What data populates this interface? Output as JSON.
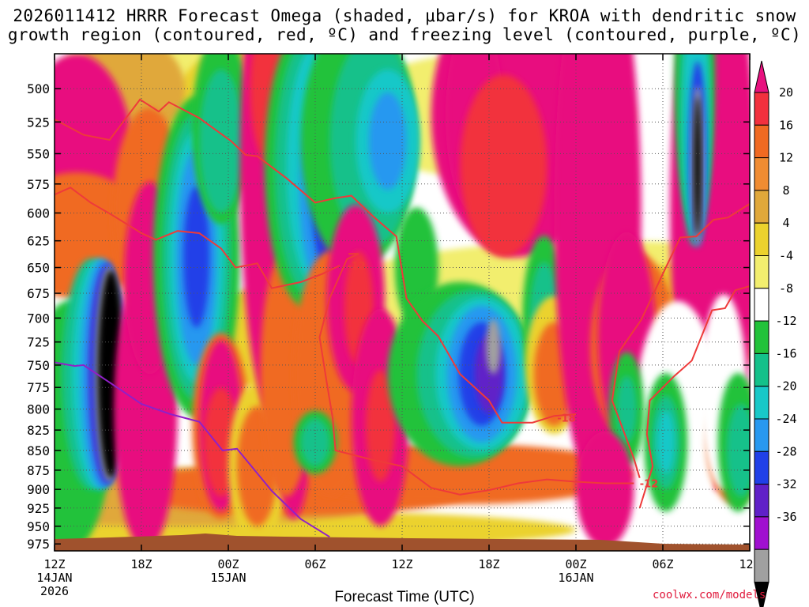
{
  "title_line1": "2026011412 HRRR Forecast Omega (shaded, μbar/s) for KROA with dendritic snow",
  "title_line2": "growth region (contoured, red, ºC) and freezing level (contoured, purple, ºC)",
  "chart_data": {
    "type": "heatmap",
    "title": "2026011412 HRRR Forecast Omega (shaded, μbar/s) for KROA with dendritic snow growth region (contoured, red, ºC) and freezing level (contoured, purple, ºC)",
    "xlabel": "Forecast Time (UTC)",
    "ylabel": "",
    "x_ticks": [
      {
        "hour": 0,
        "labels": [
          "12Z",
          "14JAN",
          "2026"
        ]
      },
      {
        "hour": 6,
        "labels": [
          "18Z"
        ]
      },
      {
        "hour": 12,
        "labels": [
          "00Z",
          "15JAN"
        ]
      },
      {
        "hour": 18,
        "labels": [
          "06Z"
        ]
      },
      {
        "hour": 24,
        "labels": [
          "12Z"
        ]
      },
      {
        "hour": 30,
        "labels": [
          "18Z"
        ]
      },
      {
        "hour": 36,
        "labels": [
          "00Z",
          "16JAN"
        ]
      },
      {
        "hour": 42,
        "labels": [
          "06Z"
        ]
      },
      {
        "hour": 48,
        "labels": [
          "12Z"
        ]
      }
    ],
    "x_range_hours": [
      0,
      48
    ],
    "y_ticks": [
      500,
      525,
      550,
      575,
      600,
      625,
      650,
      675,
      700,
      725,
      750,
      775,
      800,
      825,
      850,
      875,
      900,
      925,
      950,
      975
    ],
    "y_range_hPa": [
      475,
      985
    ],
    "y_scale": "log-pressure",
    "grid": true,
    "colorbar": {
      "labels": [
        "20",
        "16",
        "12",
        "8",
        "4",
        "-4",
        "-8",
        "-12",
        "-16",
        "-20",
        "-24",
        "-28",
        "-32",
        "-36"
      ],
      "colors": [
        "#e8117f",
        "#f2303e",
        "#f06a22",
        "#f08c32",
        "#e0a83a",
        "#ebd22d",
        "#f2ee6e",
        "#ffffff",
        "#22c23a",
        "#14c18a",
        "#18c8c8",
        "#2898f0",
        "#2040e8",
        "#6020c8",
        "#a010d0",
        "#a0a0a0",
        "#000000"
      ]
    },
    "contours": [
      {
        "name": "dendritic snow growth region (red)",
        "color": "#ee3a3a",
        "level": -18,
        "points": [
          [
            0,
            523
          ],
          [
            2,
            535
          ],
          [
            3.8,
            539
          ],
          [
            5.9,
            508
          ],
          [
            7.2,
            517
          ],
          [
            7.9,
            510
          ],
          [
            10,
            522
          ],
          [
            12.2,
            540
          ],
          [
            13.2,
            551
          ],
          [
            14,
            552
          ],
          [
            16,
            570
          ],
          [
            18,
            591
          ],
          [
            19.4,
            587
          ],
          [
            20.5,
            585
          ],
          [
            22,
            603
          ],
          [
            23.6,
            621
          ],
          [
            24.3,
            680
          ],
          [
            25.4,
            703
          ],
          [
            26.5,
            719
          ],
          [
            28,
            760
          ],
          [
            30,
            790
          ],
          [
            30.9,
            816
          ],
          [
            33,
            816
          ],
          [
            34.5,
            808
          ],
          [
            36,
            806
          ]
        ],
        "label_hour": 34.7,
        "label_hPa": 810
      },
      {
        "name": "dendritic snow growth region (red)",
        "color": "#ee3a3a",
        "level": -12,
        "points": [
          [
            0,
            584
          ],
          [
            1.1,
            578
          ],
          [
            2.5,
            591
          ],
          [
            4,
            602
          ],
          [
            6,
            618
          ],
          [
            7,
            624
          ],
          [
            8.5,
            616
          ],
          [
            10,
            618
          ],
          [
            11.5,
            632
          ],
          [
            12.5,
            650
          ],
          [
            14,
            646
          ],
          [
            15,
            670
          ],
          [
            17,
            664
          ],
          [
            18.5,
            656
          ],
          [
            19.7,
            648
          ]
        ],
        "label_hour": 20.2,
        "label_hPa": 648
      },
      {
        "name": "dendritic snow growth region (red)",
        "color": "#ee3a3a",
        "level": -12,
        "points": [
          [
            20.3,
            637
          ],
          [
            21,
            637
          ],
          [
            20.2,
            642
          ],
          [
            19,
            680
          ],
          [
            18.3,
            720
          ],
          [
            18.8,
            770
          ],
          [
            19.2,
            810
          ],
          [
            19.4,
            850
          ],
          [
            22,
            862
          ],
          [
            24,
            870
          ],
          [
            26,
            898
          ],
          [
            28,
            907
          ],
          [
            30,
            901
          ],
          [
            32,
            892
          ],
          [
            34,
            887
          ],
          [
            36,
            890
          ],
          [
            38,
            892
          ],
          [
            40,
            892
          ]
        ],
        "label_hour": 40.4,
        "label_hPa": 892
      },
      {
        "name": "dendritic snow growth region (red)",
        "color": "#ee3a3a",
        "level": -12,
        "points": [
          [
            48,
            592
          ],
          [
            46.5,
            604
          ],
          [
            45.5,
            606
          ],
          [
            44.3,
            621
          ],
          [
            43.2,
            622
          ],
          [
            42,
            656
          ],
          [
            40.5,
            702
          ],
          [
            39,
            735
          ],
          [
            38.5,
            790
          ],
          [
            40,
            860
          ],
          [
            40.4,
            885
          ]
        ]
      },
      {
        "name": "dendritic snow growth region (red)",
        "color": "#ee3a3a",
        "level": -18,
        "points": [
          [
            48,
            668
          ],
          [
            47,
            672
          ],
          [
            46.3,
            690
          ],
          [
            45.4,
            692
          ],
          [
            44,
            745
          ],
          [
            42.8,
            762
          ],
          [
            41.1,
            790
          ],
          [
            40.9,
            830
          ],
          [
            41.3,
            870
          ],
          [
            40.8,
            900
          ],
          [
            40.4,
            925
          ]
        ]
      },
      {
        "name": "freezing level (purple)",
        "color": "#9020c8",
        "level": 0,
        "points": [
          [
            0,
            747
          ],
          [
            1.4,
            751
          ],
          [
            2,
            750
          ],
          [
            4.5,
            777
          ],
          [
            6,
            794
          ],
          [
            8,
            806
          ],
          [
            10,
            815
          ],
          [
            11.6,
            850
          ],
          [
            12.6,
            848
          ],
          [
            15,
            902
          ],
          [
            17,
            940
          ],
          [
            19,
            965
          ]
        ]
      }
    ]
  },
  "x_axis_title": "Forecast Time (UTC)",
  "credit": "coolwx.com/models"
}
